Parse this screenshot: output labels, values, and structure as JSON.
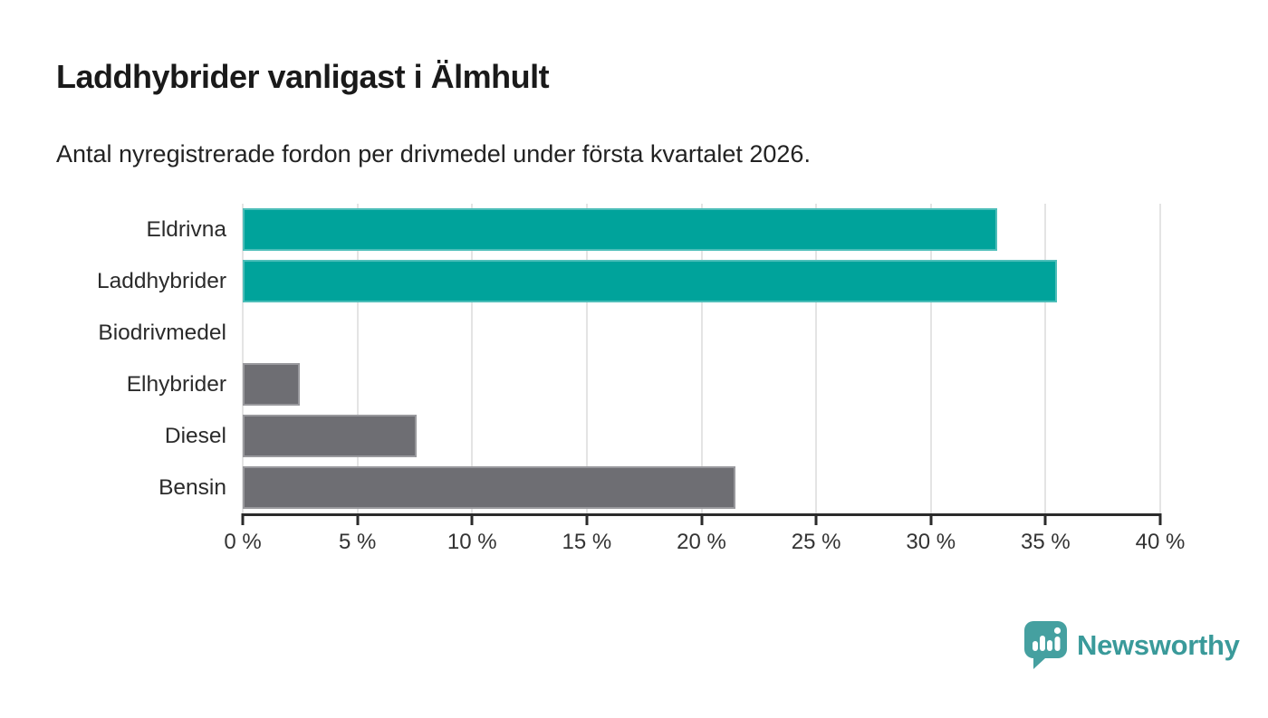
{
  "header": {
    "title": "Laddhybrider vanligast i Älmhult",
    "subtitle": "Antal nyregistrerade fordon per drivmedel under första kvartalet 2026."
  },
  "chart_data": {
    "type": "bar",
    "orientation": "horizontal",
    "title": "Laddhybrider vanligast i Älmhult",
    "subtitle": "Antal nyregistrerade fordon per drivmedel under första kvartalet 2026.",
    "categories": [
      "Eldrivna",
      "Laddhybrider",
      "Biodrivmedel",
      "Elhybrider",
      "Diesel",
      "Bensin"
    ],
    "values": [
      32.9,
      35.5,
      0,
      2.5,
      7.6,
      21.5
    ],
    "unit": "%",
    "bar_colors": [
      "#00A39B",
      "#00A39B",
      "#6E6E73",
      "#6E6E73",
      "#6E6E73",
      "#6E6E73"
    ],
    "xlim": [
      0,
      40
    ],
    "x_ticks": [
      0,
      5,
      10,
      15,
      20,
      25,
      30,
      35,
      40
    ],
    "x_tick_labels": [
      "0 %",
      "5 %",
      "10 %",
      "15 %",
      "20 %",
      "25 %",
      "30 %",
      "35 %",
      "40 %"
    ],
    "xlabel": "",
    "ylabel": "",
    "grid": "vertical",
    "legend": "none"
  },
  "colors": {
    "teal_bar": "#00A39B",
    "gray_bar": "#6E6E73",
    "gridline": "#E4E4E4",
    "axis": "#2B2B2B",
    "brand_teal": "#3A9A9A"
  },
  "footer": {
    "brand": "Newsworthy",
    "logo_icon": "bar-chart-speech-bubble-icon"
  }
}
